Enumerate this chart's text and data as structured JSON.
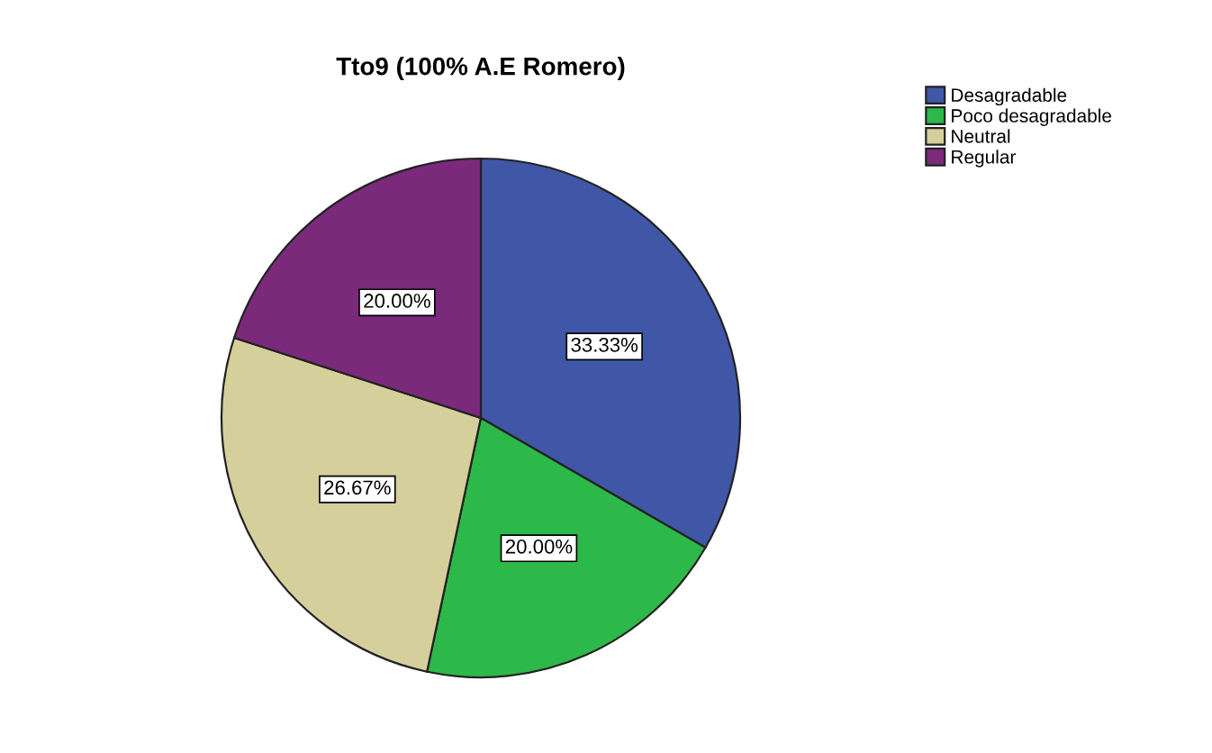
{
  "chart_data": {
    "type": "pie",
    "title": "Tto9 (100% A.E Romero)",
    "categories": [
      "Desagradable",
      "Poco desagradable",
      "Neutral",
      "Regular"
    ],
    "values": [
      33.33,
      20.0,
      26.67,
      20.0
    ],
    "colors": [
      "#3f57a6",
      "#2db84a",
      "#d5cf9b",
      "#7b2a7b"
    ],
    "value_labels": [
      "33.33%",
      "20.00%",
      "26.67%",
      "20.00%"
    ],
    "legend": "top right"
  }
}
